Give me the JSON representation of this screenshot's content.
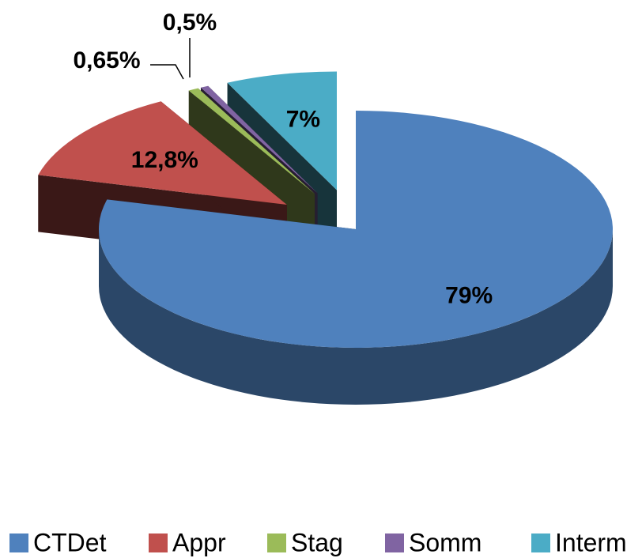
{
  "chart_data": {
    "type": "pie",
    "categories": [
      "CTDet",
      "Appr",
      "Stag",
      "Somm",
      "Interm"
    ],
    "values": [
      79,
      12.8,
      0.65,
      0.5,
      7
    ],
    "value_labels": [
      "79%",
      "12,8%",
      "0,65%",
      "0,5%",
      "7%"
    ],
    "colors": [
      "#4f81bd",
      "#c0504d",
      "#9bbb59",
      "#8064a2",
      "#4bacc6"
    ],
    "legend": "bottom"
  }
}
